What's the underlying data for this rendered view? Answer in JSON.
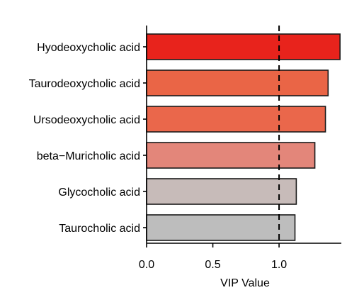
{
  "chart_data": {
    "type": "bar",
    "orientation": "horizontal",
    "categories": [
      "Hyodeoxycholic acid",
      "Taurodeoxycholic acid",
      "Ursodeoxycholic acid",
      "beta−Muricholic acid",
      "Glycocholic acid",
      "Taurocholic acid"
    ],
    "values": [
      1.46,
      1.37,
      1.35,
      1.27,
      1.13,
      1.12
    ],
    "bar_colors": [
      "#e8231c",
      "#ea6546",
      "#ea674b",
      "#e3867a",
      "#c7bbb9",
      "#bdbdbd"
    ],
    "xlabel": "VIP Value",
    "ylabel": "",
    "xlim": [
      0,
      1.47
    ],
    "xticks": [
      0.0,
      0.5,
      1.0
    ],
    "xtick_labels": [
      "0.0",
      "0.5",
      "1.0"
    ],
    "reference_line": {
      "x": 1.0,
      "style": "dashed"
    },
    "grid": false,
    "legend": "none"
  }
}
